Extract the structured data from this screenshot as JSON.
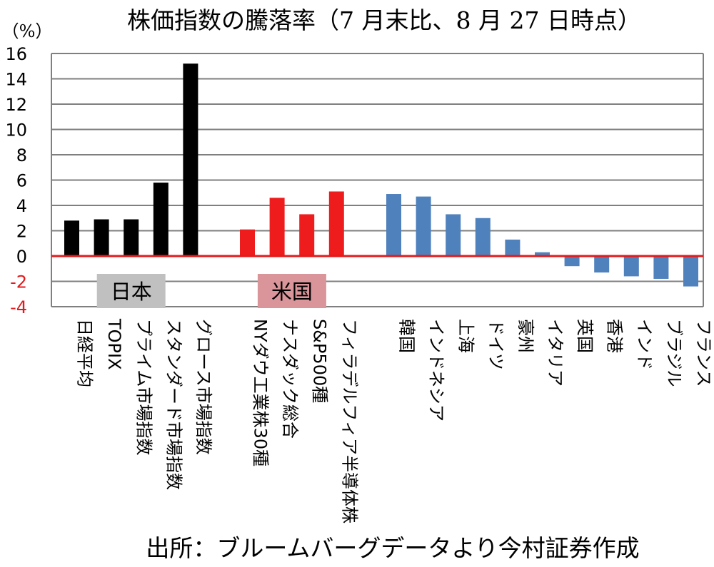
{
  "chart_data": {
    "type": "bar",
    "title": "株価指数の騰落率（7 月末比、8 月 27 日時点）",
    "ylabel": "（%）",
    "source": "出所：ブルームバーグデータより今村証券作成",
    "ylim": [
      -4,
      16
    ],
    "yticks": [
      16,
      14,
      12,
      10,
      8,
      6,
      4,
      2,
      0,
      -2,
      -4
    ],
    "grid": true,
    "groups": [
      {
        "label": "日本",
        "color": "#000000",
        "label_bg": "#c0c0c0",
        "categories": [
          "日経平均",
          "TOPIX",
          "プライム市場指数",
          "スタンダード市場指数",
          "グロース市場指数"
        ],
        "values": [
          2.8,
          2.9,
          2.9,
          5.8,
          15.2
        ]
      },
      {
        "label": "米国",
        "color": "#ee1c1c",
        "label_bg": "#d9959a",
        "categories": [
          "NYダウ工業株30種",
          "ナスダック総合",
          "S&P500種",
          "フィラデルフィア半導体株"
        ],
        "values": [
          2.1,
          4.6,
          3.3,
          5.1
        ]
      },
      {
        "label": "",
        "color": "#4f81bd",
        "label_bg": "",
        "categories": [
          "韓国",
          "インドネシア",
          "上海",
          "ドイツ",
          "豪州",
          "イタリア",
          "英国",
          "香港",
          "インド",
          "ブラジル",
          "フランス"
        ],
        "values": [
          4.9,
          4.7,
          3.3,
          3.0,
          1.3,
          0.3,
          -0.8,
          -1.3,
          -1.6,
          -1.8,
          -2.4
        ]
      }
    ]
  },
  "colors": {
    "grid": "#7f7f7f",
    "zero_line": "#e31a1c",
    "negative_tick": "#e31a1c",
    "positive_tick": "#000000"
  }
}
